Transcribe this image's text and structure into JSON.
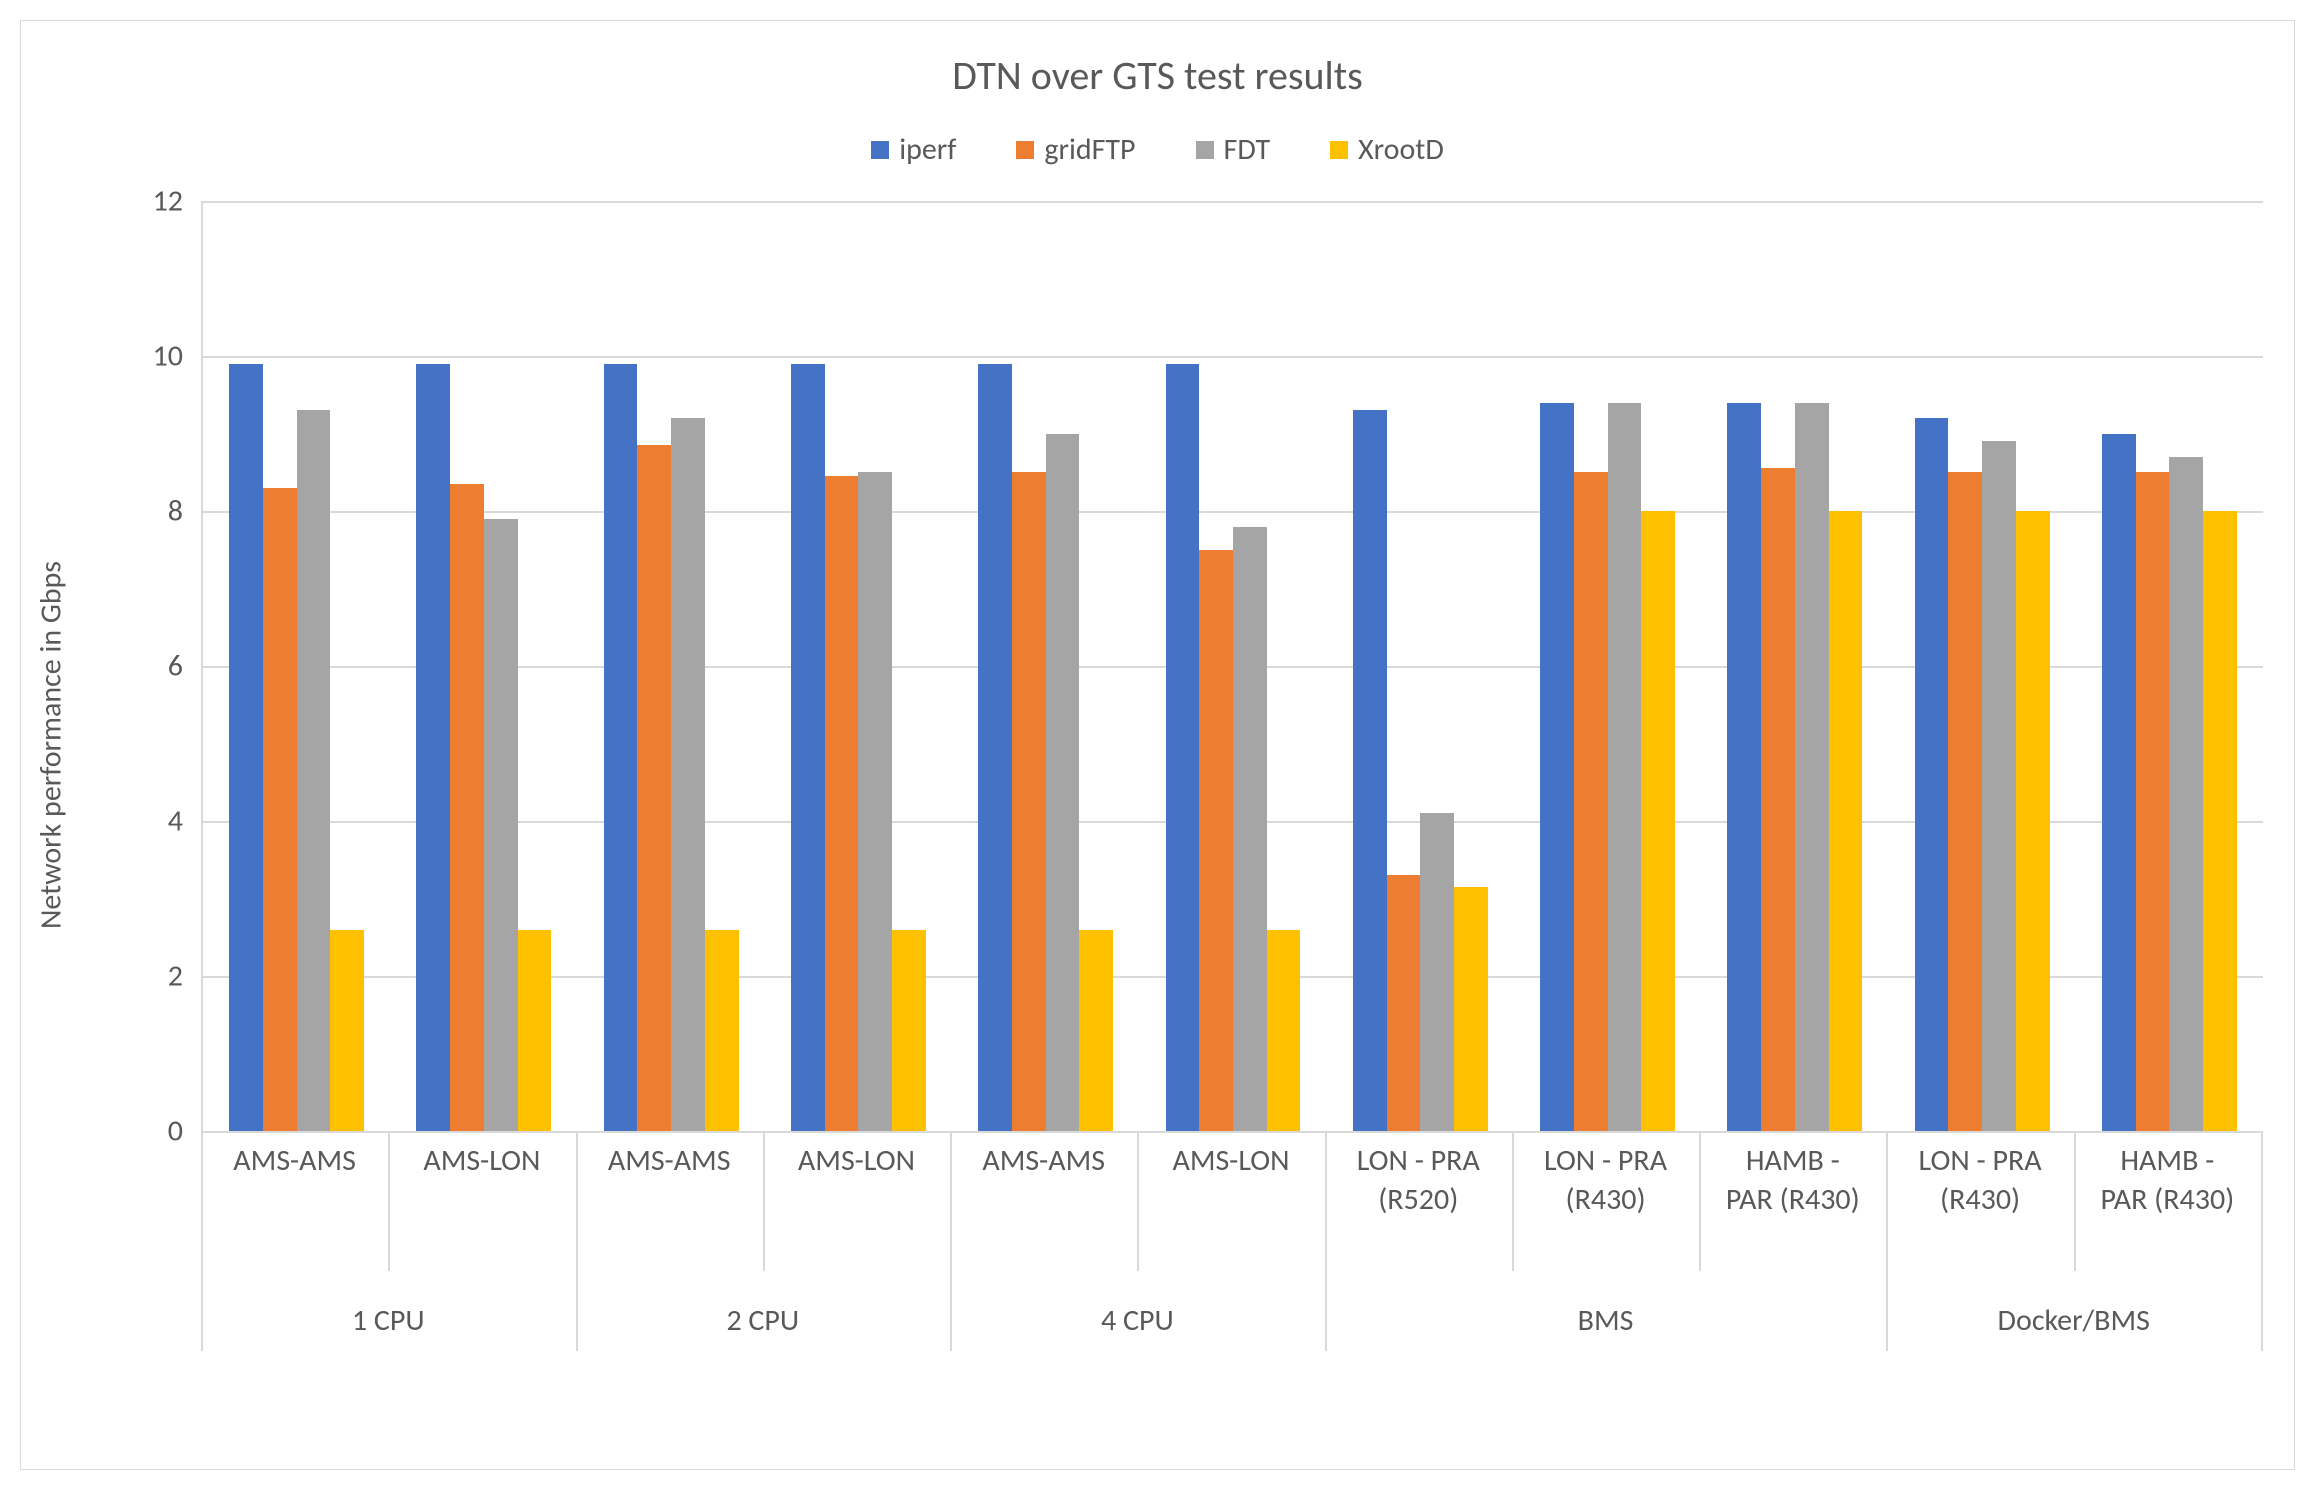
{
  "chart": {
    "type": "bar",
    "title": "DTN over GTS test results",
    "title_fontsize": 40,
    "ylabel": "Network performance in Gbps",
    "ylabel_fontsize": 30,
    "legend_fontsize": 30,
    "tick_fontsize": 30,
    "background_color": "#ffffff",
    "grid_color": "#d9d9d9",
    "text_color": "#595959",
    "ylim": [
      0,
      12
    ],
    "ytick_step": 2,
    "yticks": [
      0,
      2,
      4,
      6,
      8,
      10,
      12
    ],
    "series": [
      {
        "name": "iperf",
        "color": "#4472c4"
      },
      {
        "name": "gridFTP",
        "color": "#ed7d31"
      },
      {
        "name": "FDT",
        "color": "#a5a5a5"
      },
      {
        "name": "XrootD",
        "color": "#ffc000"
      }
    ],
    "super_groups": [
      {
        "label": "1 CPU",
        "count": 2
      },
      {
        "label": "2 CPU",
        "count": 2
      },
      {
        "label": "4 CPU",
        "count": 2
      },
      {
        "label": "BMS",
        "count": 3
      },
      {
        "label": "Docker/BMS",
        "count": 2
      }
    ],
    "categories": [
      {
        "label": "AMS-AMS",
        "values": [
          9.9,
          8.3,
          9.3,
          2.6
        ]
      },
      {
        "label": "AMS-LON",
        "values": [
          9.9,
          8.35,
          7.9,
          2.6
        ]
      },
      {
        "label": "AMS-AMS",
        "values": [
          9.9,
          8.85,
          9.2,
          2.6
        ]
      },
      {
        "label": "AMS-LON",
        "values": [
          9.9,
          8.45,
          8.5,
          2.6
        ]
      },
      {
        "label": "AMS-AMS",
        "values": [
          9.9,
          8.5,
          9.0,
          2.6
        ]
      },
      {
        "label": "AMS-LON",
        "values": [
          9.9,
          7.5,
          7.8,
          2.6
        ]
      },
      {
        "label": "LON - PRA\n(R520)",
        "values": [
          9.3,
          3.3,
          4.1,
          3.15
        ]
      },
      {
        "label": "LON - PRA\n(R430)",
        "values": [
          9.4,
          8.5,
          9.4,
          8.0
        ]
      },
      {
        "label": "HAMB -\nPAR (R430)",
        "values": [
          9.4,
          8.55,
          9.4,
          8.0
        ]
      },
      {
        "label": "LON - PRA\n(R430)",
        "values": [
          9.2,
          8.5,
          8.9,
          8.0
        ]
      },
      {
        "label": "HAMB -\nPAR (R430)",
        "values": [
          9.0,
          8.5,
          8.7,
          8.0
        ]
      }
    ],
    "bar_width": 0.18,
    "group_gap": 0.28
  }
}
